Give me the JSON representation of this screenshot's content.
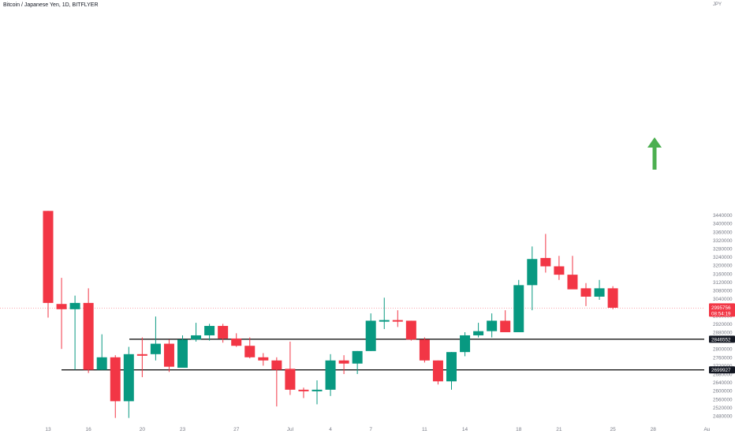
{
  "header": {
    "title": "Bitcoin / Japanese Yen, 1D, BITFLYER",
    "unit": "JPY"
  },
  "colors": {
    "up": "#089981",
    "down": "#f23645",
    "axis_text": "#787b86",
    "price_line": "#f23645",
    "arrow": "#4caf50"
  },
  "chart_data": {
    "type": "candlestick",
    "title": "Bitcoin / Japanese Yen, 1D, BITFLYER",
    "ylabel": "JPY",
    "ylim": [
      2460000,
      3460000
    ],
    "y_ticks": [
      2480000,
      2520000,
      2560000,
      2600000,
      2640000,
      2680000,
      2720000,
      2760000,
      2800000,
      2840000,
      2880000,
      2920000,
      2960000,
      3000000,
      3040000,
      3080000,
      3120000,
      3160000,
      3200000,
      3240000,
      3280000,
      3320000,
      3360000,
      3400000,
      3440000
    ],
    "x_ticks": [
      {
        "label": "13",
        "index": 0
      },
      {
        "label": "16",
        "index": 3
      },
      {
        "label": "20",
        "index": 7
      },
      {
        "label": "23",
        "index": 10
      },
      {
        "label": "27",
        "index": 14
      },
      {
        "label": "Jul",
        "index": 18
      },
      {
        "label": "4",
        "index": 21
      },
      {
        "label": "7",
        "index": 24
      },
      {
        "label": "11",
        "index": 28
      },
      {
        "label": "14",
        "index": 31
      },
      {
        "label": "18",
        "index": 35
      },
      {
        "label": "21",
        "index": 38
      },
      {
        "label": "25",
        "index": 42
      },
      {
        "label": "28",
        "index": 45
      },
      {
        "label": "Au",
        "index": 49
      }
    ],
    "candles": [
      {
        "o": 3460000,
        "h": 3460000,
        "l": 2950000,
        "c": 3020000
      },
      {
        "o": 3015000,
        "h": 3140000,
        "l": 2800000,
        "c": 2990000
      },
      {
        "o": 2990000,
        "h": 3055000,
        "l": 2700000,
        "c": 3020000
      },
      {
        "o": 3020000,
        "h": 3090000,
        "l": 2685000,
        "c": 2700000
      },
      {
        "o": 2700000,
        "h": 2870000,
        "l": 2700000,
        "c": 2760000
      },
      {
        "o": 2760000,
        "h": 2770000,
        "l": 2470000,
        "c": 2550000
      },
      {
        "o": 2550000,
        "h": 2810000,
        "l": 2470000,
        "c": 2775000
      },
      {
        "o": 2775000,
        "h": 2855000,
        "l": 2665000,
        "c": 2770000
      },
      {
        "o": 2775000,
        "h": 2955000,
        "l": 2745000,
        "c": 2825000
      },
      {
        "o": 2825000,
        "h": 2845000,
        "l": 2690000,
        "c": 2715000
      },
      {
        "o": 2710000,
        "h": 2865000,
        "l": 2710000,
        "c": 2845000
      },
      {
        "o": 2845000,
        "h": 2925000,
        "l": 2835000,
        "c": 2865000
      },
      {
        "o": 2865000,
        "h": 2920000,
        "l": 2840000,
        "c": 2910000
      },
      {
        "o": 2910000,
        "h": 2920000,
        "l": 2830000,
        "c": 2850000
      },
      {
        "o": 2850000,
        "h": 2875000,
        "l": 2810000,
        "c": 2815000
      },
      {
        "o": 2815000,
        "h": 2855000,
        "l": 2755000,
        "c": 2760000
      },
      {
        "o": 2760000,
        "h": 2780000,
        "l": 2720000,
        "c": 2745000
      },
      {
        "o": 2745000,
        "h": 2760000,
        "l": 2525000,
        "c": 2700000
      },
      {
        "o": 2705000,
        "h": 2835000,
        "l": 2580000,
        "c": 2605000
      },
      {
        "o": 2605000,
        "h": 2615000,
        "l": 2565000,
        "c": 2598000
      },
      {
        "o": 2600000,
        "h": 2650000,
        "l": 2535000,
        "c": 2605000
      },
      {
        "o": 2605000,
        "h": 2775000,
        "l": 2575000,
        "c": 2745000
      },
      {
        "o": 2745000,
        "h": 2770000,
        "l": 2680000,
        "c": 2730000
      },
      {
        "o": 2730000,
        "h": 2790000,
        "l": 2680000,
        "c": 2790000
      },
      {
        "o": 2790000,
        "h": 2970000,
        "l": 2790000,
        "c": 2935000
      },
      {
        "o": 2935000,
        "h": 3045000,
        "l": 2895000,
        "c": 2938000
      },
      {
        "o": 2938000,
        "h": 2985000,
        "l": 2905000,
        "c": 2935000
      },
      {
        "o": 2935000,
        "h": 2935000,
        "l": 2840000,
        "c": 2845000
      },
      {
        "o": 2845000,
        "h": 2855000,
        "l": 2735000,
        "c": 2745000
      },
      {
        "o": 2745000,
        "h": 2745000,
        "l": 2630000,
        "c": 2645000
      },
      {
        "o": 2645000,
        "h": 2785000,
        "l": 2605000,
        "c": 2785000
      },
      {
        "o": 2785000,
        "h": 2880000,
        "l": 2765000,
        "c": 2865000
      },
      {
        "o": 2865000,
        "h": 2925000,
        "l": 2855000,
        "c": 2885000
      },
      {
        "o": 2885000,
        "h": 2970000,
        "l": 2855000,
        "c": 2935000
      },
      {
        "o": 2935000,
        "h": 2985000,
        "l": 2880000,
        "c": 2880000
      },
      {
        "o": 2880000,
        "h": 3130000,
        "l": 2880000,
        "c": 3105000
      },
      {
        "o": 3105000,
        "h": 3290000,
        "l": 2985000,
        "c": 3230000
      },
      {
        "o": 3235000,
        "h": 3350000,
        "l": 3165000,
        "c": 3195000
      },
      {
        "o": 3195000,
        "h": 3245000,
        "l": 3130000,
        "c": 3155000
      },
      {
        "o": 3155000,
        "h": 3245000,
        "l": 3090000,
        "c": 3085000
      },
      {
        "o": 3090000,
        "h": 3115000,
        "l": 3005000,
        "c": 3050000
      },
      {
        "o": 3050000,
        "h": 3130000,
        "l": 3035000,
        "c": 3090000
      },
      {
        "o": 3090000,
        "h": 3100000,
        "l": 2990000,
        "c": 2997000
      }
    ],
    "horizontal_lines": [
      {
        "value": 2846552,
        "label": "2846552"
      },
      {
        "value": 2699927,
        "label": "2699927"
      }
    ],
    "last_price": {
      "value": 2995756,
      "label": "2995756",
      "countdown": "08:54:19"
    }
  }
}
